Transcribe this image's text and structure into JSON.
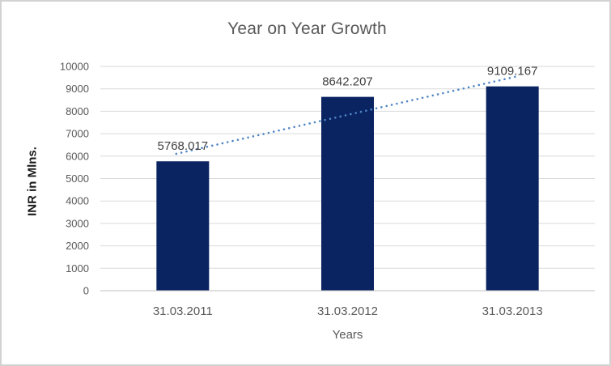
{
  "window": {
    "background": "#ffffff",
    "border_color": "#d2d2d2"
  },
  "colors": {
    "grid": "#d9d9d9",
    "axis": "#bfbfbf",
    "bar": "#0a2361",
    "trendline": "#4f86c4",
    "title_text": "#595959",
    "tick_text": "#595959",
    "data_label_text": "#404040",
    "y_title_text": "#1a1a1a"
  },
  "chart_data": {
    "type": "bar",
    "title": "Year on Year Growth",
    "xlabel": "Years",
    "ylabel": "INR in Mlns.",
    "categories": [
      "31.03.2011",
      "31.03.2012",
      "31.03.2013"
    ],
    "values": [
      5768.017,
      8642.207,
      9109.167
    ],
    "data_labels": [
      "5768.017",
      "8642.207",
      "9109.167"
    ],
    "ylim": [
      0,
      10000
    ],
    "ytick_step": 1000,
    "ytick_labels": [
      "0",
      "1000",
      "2000",
      "3000",
      "4000",
      "5000",
      "6000",
      "7000",
      "8000",
      "9000",
      "10000"
    ],
    "grid": true,
    "legend": "none",
    "series": [
      {
        "name": "INR in Mlns.",
        "type": "bar",
        "color": "#0a2361"
      }
    ],
    "trendline": {
      "type": "linear",
      "style": "dotted",
      "color": "#4f86c4"
    }
  }
}
